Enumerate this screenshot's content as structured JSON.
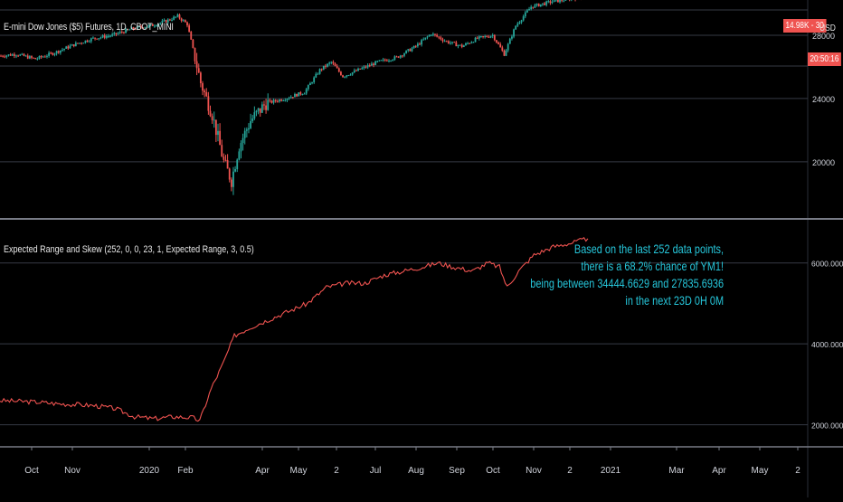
{
  "main_pane": {
    "title": "E-mini Dow Jones ($5) Futures, 1D, CBOT_MINI",
    "currency": "USD",
    "badge_value": "14.98K - 30",
    "badge_time": "20:50:16",
    "price_ticks": [
      "28000",
      "24000",
      "20000"
    ]
  },
  "indicator_pane": {
    "title": "Expected Range and Skew (252, 0, 0, 23, 1, Expected Range, 3, 0.5)",
    "ticks": [
      "6000.00000",
      "4000.00000",
      "2000.00000"
    ],
    "annotation": [
      "Based on the last 252 data points,",
      "there is a 68.2% chance of YM1!",
      "being between 34444.6629 and 27835.6936",
      "in the next 23D 0H 0M"
    ]
  },
  "time_axis": {
    "labels": [
      "Oct",
      "Nov",
      "2020",
      "Feb",
      "Apr",
      "May",
      "2",
      "Jul",
      "Aug",
      "Sep",
      "Oct",
      "Nov",
      "2",
      "2021",
      "Mar",
      "Apr",
      "May",
      "2"
    ]
  },
  "colors": {
    "up": "#26a69a",
    "down": "#ef5350",
    "grid": "#363a45",
    "annotation": "#26c6da",
    "series": "#ef5350"
  },
  "chart_data": [
    {
      "type": "candlestick",
      "title": "E-mini Dow Jones ($5) Futures, 1D, CBOT_MINI",
      "ylim": [
        16500,
        30000
      ],
      "y_ticks": [
        28000,
        24000,
        20000
      ],
      "x_labels": [
        "Oct",
        "Nov",
        "2020",
        "Feb",
        "Apr",
        "May",
        "2",
        "Jul",
        "Aug",
        "Sep",
        "Oct",
        "Nov",
        "2",
        "2021"
      ],
      "close_path": [
        {
          "t": 0,
          "v": 26700
        },
        {
          "t": 8,
          "v": 26800
        },
        {
          "t": 18,
          "v": 26500
        },
        {
          "t": 28,
          "v": 26900
        },
        {
          "t": 38,
          "v": 27400
        },
        {
          "t": 48,
          "v": 27800
        },
        {
          "t": 58,
          "v": 28000
        },
        {
          "t": 68,
          "v": 28400
        },
        {
          "t": 78,
          "v": 28600
        },
        {
          "t": 86,
          "v": 28900
        },
        {
          "t": 92,
          "v": 29200
        },
        {
          "t": 97,
          "v": 28700
        },
        {
          "t": 104,
          "v": 25000
        },
        {
          "t": 110,
          "v": 23000
        },
        {
          "t": 116,
          "v": 20000
        },
        {
          "t": 120,
          "v": 18800
        },
        {
          "t": 124,
          "v": 21000
        },
        {
          "t": 130,
          "v": 22600
        },
        {
          "t": 138,
          "v": 23700
        },
        {
          "t": 148,
          "v": 24000
        },
        {
          "t": 158,
          "v": 24400
        },
        {
          "t": 166,
          "v": 25800
        },
        {
          "t": 172,
          "v": 26300
        },
        {
          "t": 178,
          "v": 25400
        },
        {
          "t": 186,
          "v": 25800
        },
        {
          "t": 196,
          "v": 26300
        },
        {
          "t": 206,
          "v": 26600
        },
        {
          "t": 216,
          "v": 27300
        },
        {
          "t": 224,
          "v": 28100
        },
        {
          "t": 232,
          "v": 27600
        },
        {
          "t": 240,
          "v": 27300
        },
        {
          "t": 248,
          "v": 27800
        },
        {
          "t": 256,
          "v": 28000
        },
        {
          "t": 262,
          "v": 26800
        },
        {
          "t": 268,
          "v": 28600
        },
        {
          "t": 276,
          "v": 29800
        },
        {
          "t": 286,
          "v": 30100
        },
        {
          "t": 296,
          "v": 30300
        },
        {
          "t": 306,
          "v": 30500
        }
      ]
    },
    {
      "type": "line",
      "title": "Expected Range and Skew (252, 0, 0, 23, 1, Expected Range, 3, 0.5)",
      "ylim": [
        1500,
        7000
      ],
      "y_ticks": [
        6000,
        4000,
        2000
      ],
      "series": [
        {
          "color": "#ef5350",
          "points": [
            {
              "t": 0,
              "v": 2600
            },
            {
              "t": 10,
              "v": 2580
            },
            {
              "t": 20,
              "v": 2560
            },
            {
              "t": 30,
              "v": 2520
            },
            {
              "t": 40,
              "v": 2500
            },
            {
              "t": 50,
              "v": 2470
            },
            {
              "t": 60,
              "v": 2400
            },
            {
              "t": 70,
              "v": 2200
            },
            {
              "t": 80,
              "v": 2150
            },
            {
              "t": 90,
              "v": 2200
            },
            {
              "t": 100,
              "v": 2180
            },
            {
              "t": 104,
              "v": 2100
            },
            {
              "t": 110,
              "v": 2900
            },
            {
              "t": 116,
              "v": 3500
            },
            {
              "t": 122,
              "v": 4200
            },
            {
              "t": 130,
              "v": 4400
            },
            {
              "t": 140,
              "v": 4600
            },
            {
              "t": 150,
              "v": 4800
            },
            {
              "t": 160,
              "v": 5000
            },
            {
              "t": 170,
              "v": 5400
            },
            {
              "t": 180,
              "v": 5500
            },
            {
              "t": 190,
              "v": 5500
            },
            {
              "t": 200,
              "v": 5700
            },
            {
              "t": 210,
              "v": 5800
            },
            {
              "t": 220,
              "v": 5900
            },
            {
              "t": 228,
              "v": 6000
            },
            {
              "t": 236,
              "v": 5900
            },
            {
              "t": 246,
              "v": 5800
            },
            {
              "t": 254,
              "v": 6000
            },
            {
              "t": 260,
              "v": 5900
            },
            {
              "t": 264,
              "v": 5400
            },
            {
              "t": 270,
              "v": 5800
            },
            {
              "t": 278,
              "v": 6200
            },
            {
              "t": 288,
              "v": 6400
            },
            {
              "t": 298,
              "v": 6500
            },
            {
              "t": 306,
              "v": 6600
            }
          ]
        }
      ]
    }
  ]
}
